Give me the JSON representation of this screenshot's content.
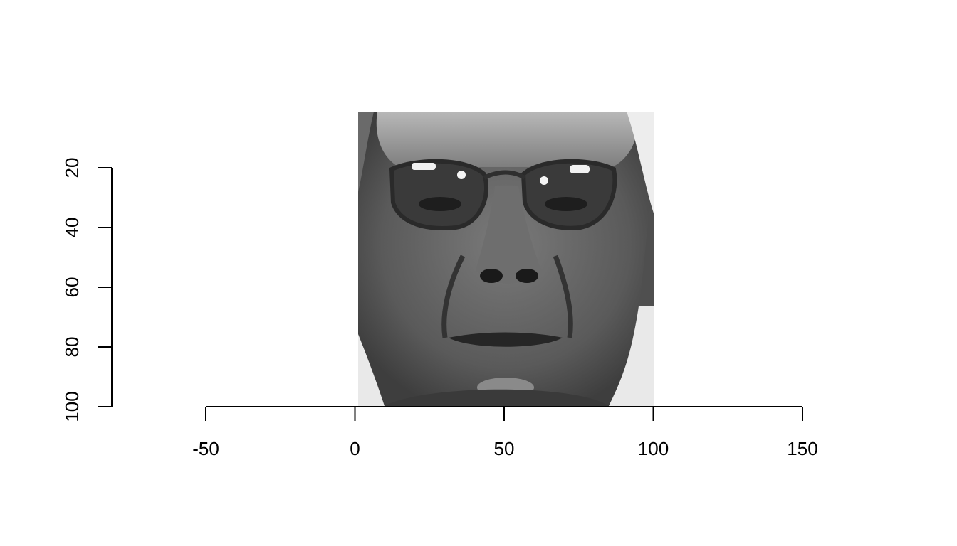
{
  "chart_data": {
    "type": "heatmap",
    "title": "",
    "xlabel": "",
    "ylabel": "",
    "xlim": [
      -50,
      150
    ],
    "ylim": [
      100,
      20
    ],
    "y_reversed": true,
    "xticks": [
      -50,
      0,
      50,
      100,
      150
    ],
    "yticks": [
      20,
      40,
      60,
      80,
      100
    ],
    "image": {
      "description": "Grayscale face image (man wearing glasses)",
      "x_range": [
        1,
        100
      ],
      "y_range": [
        1,
        100
      ],
      "colormap": "gray"
    },
    "grid": false,
    "legend": "none"
  }
}
